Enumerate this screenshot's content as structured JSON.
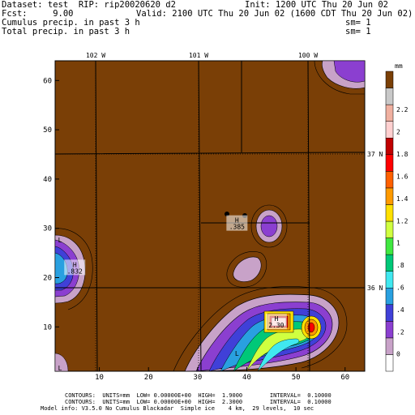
{
  "header": {
    "dataset_line": "Dataset: test  RIP: rip20020620 d2",
    "init_line": "Init: 1200 UTC Thu 20 Jun 02",
    "fcst_line": "Fcst:     9.00",
    "valid_line": "Valid: 2100 UTC Thu 20 Jun 02 (1600 CDT Thu 20 Jun 02)",
    "field1": "Cumulus precip. in past 3 h",
    "field1_sm": "sm= 1",
    "field2": "Total precip. in past 3 h",
    "field2_sm": "sm= 1"
  },
  "map": {
    "longitude_labels": [
      "102 W",
      "101 W",
      "100 W"
    ],
    "latitude_labels": [
      "37 N",
      "36 N"
    ],
    "x_ticks": [
      "10",
      "20",
      "30",
      "40",
      "50",
      "60"
    ],
    "y_ticks": [
      "10",
      "20",
      "30",
      "40",
      "50",
      "60"
    ],
    "background_color": "#7a3f06",
    "features": [
      {
        "symbol": "H",
        "value": "2.30",
        "grid_x": 46,
        "grid_y": 11
      },
      {
        "symbol": "H",
        "value": ".832",
        "grid_x": 5,
        "grid_y": 22
      },
      {
        "symbol": "H",
        "value": ".385",
        "grid_x": 38,
        "grid_y": 31
      },
      {
        "symbol": "L",
        "value": "",
        "grid_x": 2,
        "grid_y": 27
      },
      {
        "symbol": "L",
        "value": "",
        "grid_x": 2,
        "grid_y": 1
      },
      {
        "symbol": "L",
        "value": "",
        "grid_x": 38,
        "grid_y": 4
      }
    ]
  },
  "colorbar": {
    "unit": "mm",
    "tick_labels": [
      "0",
      ".2",
      ".4",
      ".6",
      ".8",
      "1",
      "1.2",
      "1.4",
      "1.6",
      "1.8",
      "2",
      "2.2"
    ],
    "colors": [
      "#ffffff",
      "#c8a2c8",
      "#8b3fd0",
      "#4040d8",
      "#29a0e0",
      "#40e8f0",
      "#00c878",
      "#40e840",
      "#d0ff40",
      "#ffe000",
      "#ff9a00",
      "#ff6000",
      "#ff0000",
      "#c00000",
      "#ffd0d0",
      "#f0b0a0",
      "#c8c8c8",
      "#7a3f06"
    ]
  },
  "footer": {
    "line1": "CONTOURS:  UNITS=mm  LOW= 0.00000E+00  HIGH=  1.9000        INTERVAL=  0.10000",
    "line2": "CONTOURS:  UNITS=mm  LOW= 0.00000E+00  HIGH=  2.3000        INTERVAL=  0.10000",
    "line3": "Model info: V3.5.0 No Cumulus Blackadar  Simple ice    4 km,  29 levels,  10 sec"
  }
}
